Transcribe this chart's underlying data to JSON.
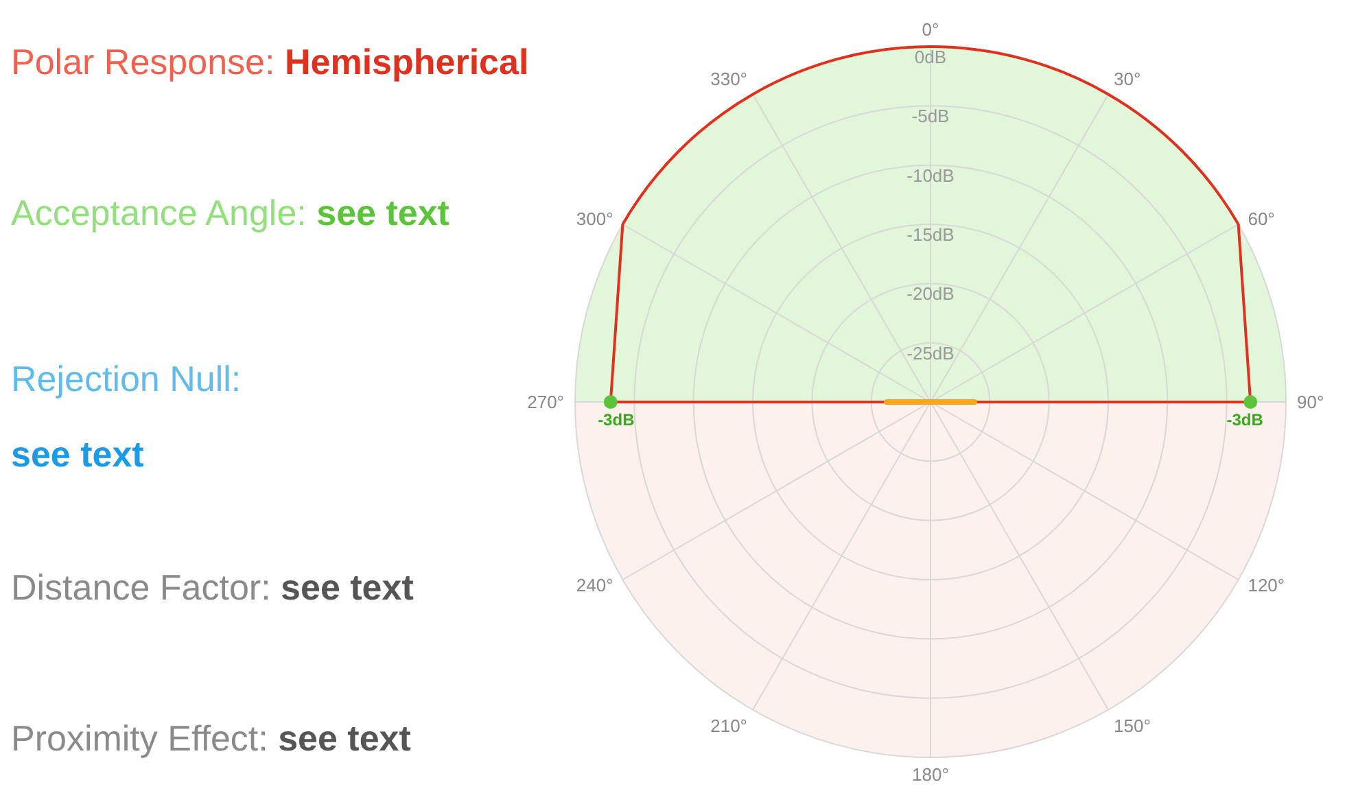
{
  "chart_data": {
    "type": "radar",
    "categories": [
      "0°",
      "30°",
      "60°",
      "90°",
      "120°",
      "150°",
      "180°",
      "210°",
      "240°",
      "270°",
      "300°",
      "330°"
    ],
    "series": [
      {
        "color": "#e0301e",
        "values": [
          0,
          0,
          0,
          -3,
          -30,
          -30,
          -30,
          -30,
          -30,
          -3,
          0,
          0
        ],
        "value_labels": [
          null,
          null,
          null,
          "-3dB",
          null,
          null,
          null,
          null,
          null,
          "-3dB",
          null,
          null
        ]
      }
    ],
    "ylim": [
      -30,
      0
    ],
    "yticks": [
      {
        "value": 0,
        "label": "0dB"
      },
      {
        "value": -5,
        "label": "-5dB"
      },
      {
        "value": -10,
        "label": "-10dB"
      },
      {
        "value": -15,
        "label": "-15dB"
      },
      {
        "value": -20,
        "label": "-20dB"
      },
      {
        "value": -25,
        "label": "-25dB"
      }
    ],
    "grid": true,
    "marker": "circle",
    "annotations": [
      "Polar Response: Hemispherical",
      "Acceptance Angle: see text",
      "Rejection Null:\nsee text",
      "Distance Factor: see text",
      "Proximity Effect: see text"
    ]
  }
}
